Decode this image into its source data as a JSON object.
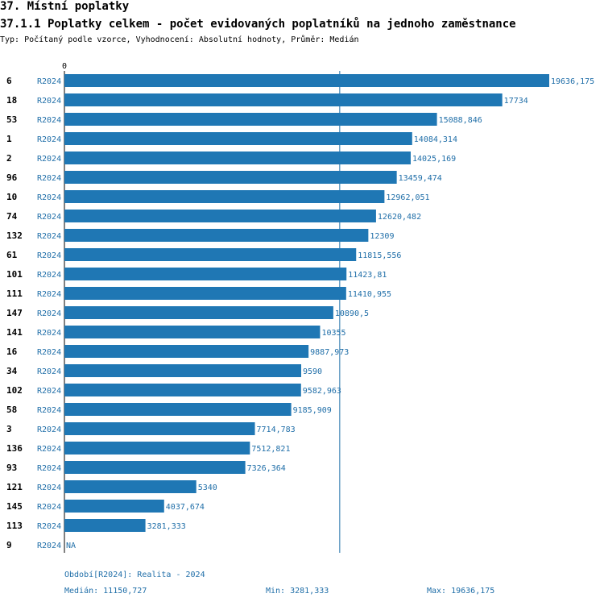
{
  "header": {
    "section_title": "37. Místní poplatky",
    "chart_title": "37.1.1 Poplatky celkem - počet evidovaných poplatníků na jednoho zaměstnance",
    "subtitle": "Typ: Počítaný podle vzorce, Vyhodnocení: Absolutní hodnoty, Průměr: Medián"
  },
  "chart_data": {
    "type": "bar",
    "orientation": "horizontal",
    "x_axis_tick": "0",
    "xlim": [
      0,
      19636.175
    ],
    "series_label": "R2024",
    "bar_color": "#1f77b4",
    "median_line": 11150.727,
    "rows": [
      {
        "id": "6",
        "value": 19636.175,
        "label": "19636,175"
      },
      {
        "id": "18",
        "value": 17734,
        "label": "17734"
      },
      {
        "id": "53",
        "value": 15088.846,
        "label": "15088,846"
      },
      {
        "id": "1",
        "value": 14084.314,
        "label": "14084,314"
      },
      {
        "id": "2",
        "value": 14025.169,
        "label": "14025,169"
      },
      {
        "id": "96",
        "value": 13459.474,
        "label": "13459,474"
      },
      {
        "id": "10",
        "value": 12962.051,
        "label": "12962,051"
      },
      {
        "id": "74",
        "value": 12620.482,
        "label": "12620,482"
      },
      {
        "id": "132",
        "value": 12309,
        "label": "12309"
      },
      {
        "id": "61",
        "value": 11815.556,
        "label": "11815,556"
      },
      {
        "id": "101",
        "value": 11423.81,
        "label": "11423,81"
      },
      {
        "id": "111",
        "value": 11410.955,
        "label": "11410,955"
      },
      {
        "id": "147",
        "value": 10890.5,
        "label": "10890,5"
      },
      {
        "id": "141",
        "value": 10355,
        "label": "10355"
      },
      {
        "id": "16",
        "value": 9887.973,
        "label": "9887,973"
      },
      {
        "id": "34",
        "value": 9590,
        "label": "9590"
      },
      {
        "id": "102",
        "value": 9582.963,
        "label": "9582,963"
      },
      {
        "id": "58",
        "value": 9185.909,
        "label": "9185,909"
      },
      {
        "id": "3",
        "value": 7714.783,
        "label": "7714,783"
      },
      {
        "id": "136",
        "value": 7512.821,
        "label": "7512,821"
      },
      {
        "id": "93",
        "value": 7326.364,
        "label": "7326,364"
      },
      {
        "id": "121",
        "value": 5340,
        "label": "5340"
      },
      {
        "id": "145",
        "value": 4037.674,
        "label": "4037,674"
      },
      {
        "id": "113",
        "value": 3281.333,
        "label": "3281,333"
      },
      {
        "id": "9",
        "value": null,
        "label": "NA"
      }
    ]
  },
  "footer": {
    "period": "Období[R2024]: Realita - 2024",
    "median": "Medián: 11150,727",
    "min": "Min: 3281,333",
    "max": "Max: 19636,175"
  }
}
